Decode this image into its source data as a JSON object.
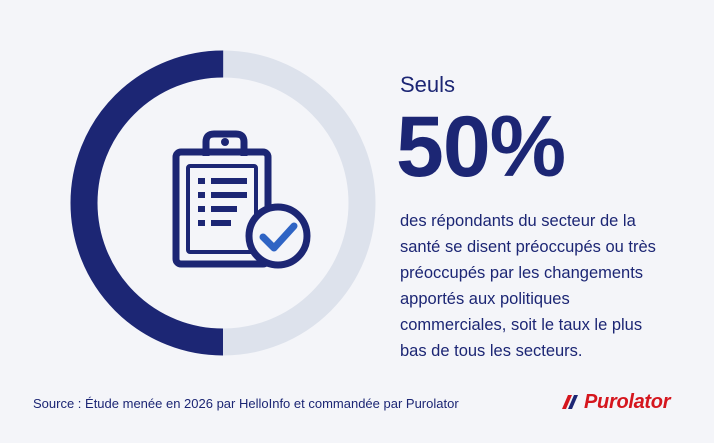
{
  "stat": {
    "lead": "Seuls",
    "value": "50%",
    "fraction": 0.5,
    "description": "des répondants du secteur de la santé se disent préoccupés ou très préoccupés par les changements apportés aux politiques commerciales, soit le taux le plus bas de tous les secteurs."
  },
  "footer": {
    "source": "Source : Étude menée en 2026 par HelloInfo et commandée par Purolator"
  },
  "brand": {
    "logo_text": "Purolator",
    "logo_color": "#d5161e"
  },
  "icons": {
    "main": "clipboard-check-icon"
  },
  "colors": {
    "background": "#f4f5f9",
    "primary": "#1c2674",
    "ring_filled": "#1c2674",
    "ring_track": "#dde2ec",
    "check": "#2f64c4"
  }
}
